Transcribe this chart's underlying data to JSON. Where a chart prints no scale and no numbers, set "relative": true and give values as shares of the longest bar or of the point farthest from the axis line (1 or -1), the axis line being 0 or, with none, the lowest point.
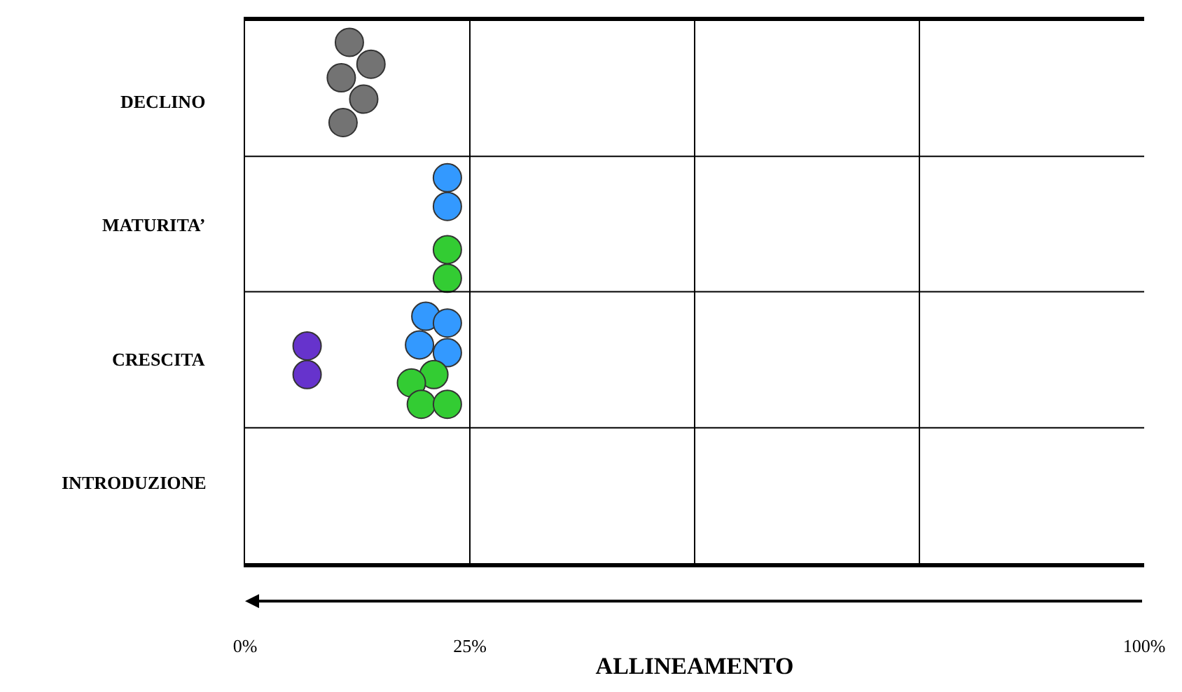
{
  "chart_data": {
    "type": "scatter",
    "xlabel": "ALLINEAMENTO",
    "relative": true,
    "annotations": [
      "DECLINO",
      "MATURITA’",
      "CRESCITA",
      "INTRODUZIONE"
    ],
    "xlim": [
      0,
      100
    ],
    "xticks": [
      {
        "value": 0,
        "label": "0%"
      },
      {
        "value": 25,
        "label": "25%"
      },
      {
        "value": 50,
        "label": null
      },
      {
        "value": 75,
        "label": null
      },
      {
        "value": 100,
        "label": "100%"
      }
    ],
    "grid": "x",
    "marker": "circle",
    "ref_lines": [
      {
        "axis": "y",
        "value": 0.26,
        "color": "#000000"
      },
      {
        "axis": "y",
        "value": 0.521,
        "color": "#000000"
      },
      {
        "axis": "y",
        "value": 0.781,
        "color": "#000000"
      }
    ],
    "series": [
      {
        "color": "#737373",
        "x": [
          11.6,
          14.0,
          10.7,
          13.2,
          10.9
        ],
        "values": [
          1,
          0.958,
          0.932,
          0.891,
          0.846
        ]
      },
      {
        "color": "#3399ff",
        "x": [
          22.5,
          22.5,
          20.1,
          22.5,
          19.4,
          22.5
        ],
        "values": [
          0.74,
          0.685,
          0.474,
          0.461,
          0.419,
          0.404
        ]
      },
      {
        "color": "#33cc33",
        "x": [
          22.5,
          22.5,
          21.0,
          18.5,
          19.6,
          22.5
        ],
        "values": [
          0.602,
          0.547,
          0.362,
          0.346,
          0.305,
          0.305
        ]
      },
      {
        "color": "#6633cc",
        "x": [
          6.9,
          6.9
        ],
        "values": [
          0.417,
          0.362
        ]
      }
    ]
  }
}
